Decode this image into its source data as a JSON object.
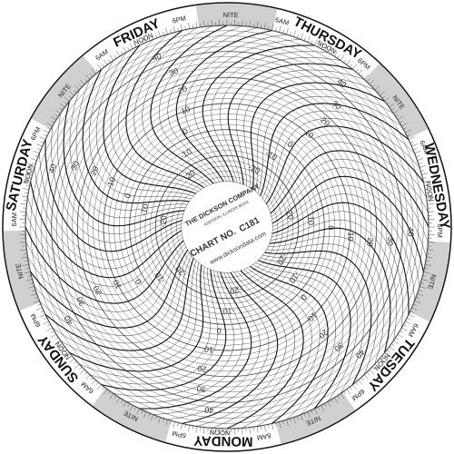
{
  "company": "THE DICKSON COMPANY",
  "location": "ADDISON, ILLINOIS 60101",
  "chart_no_label": "CHART NO.",
  "chart_no": "C181",
  "website": "www.dicksondata.com",
  "days": [
    "THURSDAY",
    "WEDNESDAY",
    "TUESDAY",
    "MONDAY",
    "SUNDAY",
    "SATURDAY",
    "FRIDAY"
  ],
  "time_labels": [
    "NOON",
    "6PM",
    "NITE",
    "6AM"
  ],
  "scale": [
    "-20",
    "-10",
    "0",
    "10",
    "20",
    "30",
    "40"
  ],
  "colors": {
    "band": "#d0d0d0",
    "grid": "#555555",
    "ink": "#111111"
  }
}
